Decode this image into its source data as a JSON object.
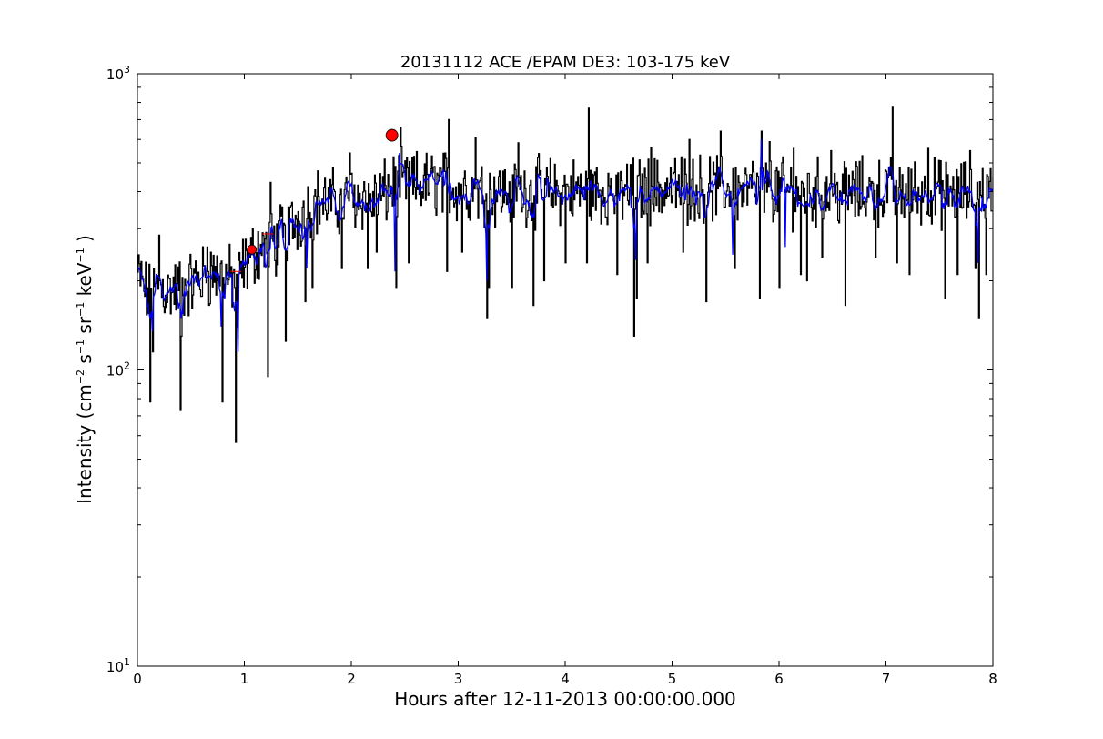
{
  "chart_data": {
    "type": "line",
    "title": "20131112 ACE /EPAM DE3: 103-175 keV",
    "xlabel": "Hours after 12-11-2013 00:00:00.000",
    "ylabel_parts": {
      "prefix": "Intensity (cm",
      "exp1": "−2",
      "s": " s",
      "exp2": "−1",
      "sr": " sr",
      "exp3": "−1",
      "kev": " keV",
      "exp4": "−1",
      "suffix": " )"
    },
    "xlim": [
      0,
      8
    ],
    "ylim": [
      10,
      1000
    ],
    "yscale": "log",
    "grid": false,
    "x_ticks": [
      "0",
      "1",
      "2",
      "3",
      "4",
      "5",
      "6",
      "7",
      "8"
    ],
    "y_ticks": [
      {
        "base": "10",
        "exp": "1",
        "value": 10
      },
      {
        "base": "10",
        "exp": "2",
        "value": 100
      },
      {
        "base": "10",
        "exp": "3",
        "value": 1000
      }
    ],
    "colors": {
      "raw": "#000000",
      "smoothed": "#0000ff",
      "marker": "#ff0000"
    },
    "series": [
      {
        "key": "raw",
        "baseline": [
          [
            0,
            210
          ],
          [
            0.1,
            175
          ],
          [
            0.2,
            190
          ],
          [
            0.3,
            185
          ],
          [
            0.4,
            190
          ],
          [
            0.5,
            195
          ],
          [
            0.6,
            205
          ],
          [
            0.7,
            215
          ],
          [
            0.8,
            205
          ],
          [
            0.9,
            200
          ],
          [
            1.0,
            225
          ],
          [
            1.1,
            250
          ],
          [
            1.2,
            265
          ],
          [
            1.3,
            270
          ],
          [
            1.4,
            295
          ],
          [
            1.5,
            325
          ],
          [
            1.6,
            355
          ],
          [
            1.7,
            370
          ],
          [
            1.8,
            365
          ],
          [
            1.9,
            370
          ],
          [
            2.0,
            380
          ],
          [
            2.1,
            385
          ],
          [
            2.2,
            370
          ],
          [
            2.3,
            390
          ],
          [
            2.4,
            420
          ],
          [
            2.6,
            420
          ],
          [
            2.8,
            430
          ],
          [
            3.0,
            410
          ],
          [
            3.3,
            400
          ],
          [
            3.6,
            400
          ],
          [
            4.0,
            400
          ],
          [
            4.5,
            400
          ],
          [
            5.0,
            410
          ],
          [
            5.5,
            410
          ],
          [
            6.0,
            400
          ],
          [
            6.5,
            395
          ],
          [
            7.0,
            400
          ],
          [
            7.5,
            395
          ],
          [
            8.0,
            395
          ]
        ],
        "dips": [
          [
            0.12,
            78
          ],
          [
            0.14,
            115
          ],
          [
            0.4,
            73
          ],
          [
            0.41,
            130
          ],
          [
            0.79,
            78
          ],
          [
            0.92,
            57
          ],
          [
            0.93,
            140
          ],
          [
            1.22,
            95
          ],
          [
            1.24,
            150
          ],
          [
            1.38,
            125
          ],
          [
            1.57,
            170
          ],
          [
            1.63,
            190
          ],
          [
            1.91,
            220
          ],
          [
            2.15,
            220
          ],
          [
            2.23,
            250
          ],
          [
            2.42,
            190
          ],
          [
            2.53,
            230
          ],
          [
            2.89,
            215
          ],
          [
            3.03,
            250
          ],
          [
            3.27,
            150
          ],
          [
            3.28,
            190
          ],
          [
            3.5,
            190
          ],
          [
            3.7,
            165
          ],
          [
            3.8,
            200
          ],
          [
            4.0,
            230
          ],
          [
            4.2,
            230
          ],
          [
            4.48,
            210
          ],
          [
            4.64,
            130
          ],
          [
            4.67,
            175
          ],
          [
            4.77,
            230
          ],
          [
            5.1,
            250
          ],
          [
            5.32,
            170
          ],
          [
            5.58,
            220
          ],
          [
            5.82,
            175
          ],
          [
            6.0,
            190
          ],
          [
            6.2,
            210
          ],
          [
            6.26,
            200
          ],
          [
            6.4,
            240
          ],
          [
            6.62,
            165
          ],
          [
            6.9,
            240
          ],
          [
            7.1,
            230
          ],
          [
            7.22,
            210
          ],
          [
            7.55,
            175
          ],
          [
            7.67,
            210
          ],
          [
            7.83,
            220
          ],
          [
            7.87,
            150
          ],
          [
            7.93,
            210
          ]
        ],
        "peaks": [
          [
            0.2,
            285
          ],
          [
            0.65,
            260
          ],
          [
            1.24,
            430
          ],
          [
            1.68,
            470
          ],
          [
            1.98,
            540
          ],
          [
            2.46,
            660
          ],
          [
            2.91,
            700
          ],
          [
            3.16,
            610
          ],
          [
            3.56,
            585
          ],
          [
            4.22,
            765
          ],
          [
            4.8,
            565
          ],
          [
            5.16,
            600
          ],
          [
            5.45,
            640
          ],
          [
            5.83,
            640
          ],
          [
            5.91,
            590
          ],
          [
            6.13,
            560
          ],
          [
            6.48,
            550
          ],
          [
            7.06,
            770
          ],
          [
            7.39,
            560
          ],
          [
            7.78,
            550
          ]
        ]
      },
      {
        "key": "smoothed",
        "dips": [
          [
            0.14,
            135
          ],
          [
            0.41,
            150
          ],
          [
            0.78,
            140
          ],
          [
            0.94,
            115
          ],
          [
            1.58,
            220
          ],
          [
            2.41,
            215
          ],
          [
            3.27,
            200
          ],
          [
            4.66,
            235
          ],
          [
            5.57,
            245
          ],
          [
            6.06,
            260
          ],
          [
            7.86,
            230
          ]
        ],
        "peaks": [
          [
            5.83,
            600
          ],
          [
            2.45,
            540
          ]
        ]
      }
    ],
    "markers": [
      {
        "x": 1.07,
        "y": 255,
        "size": "medium"
      },
      {
        "x": 2.38,
        "y": 620,
        "size": "large"
      }
    ],
    "small_red_marks": [
      {
        "x": 0.92,
        "y": 215
      },
      {
        "x": 1.22,
        "y": 288
      }
    ]
  }
}
